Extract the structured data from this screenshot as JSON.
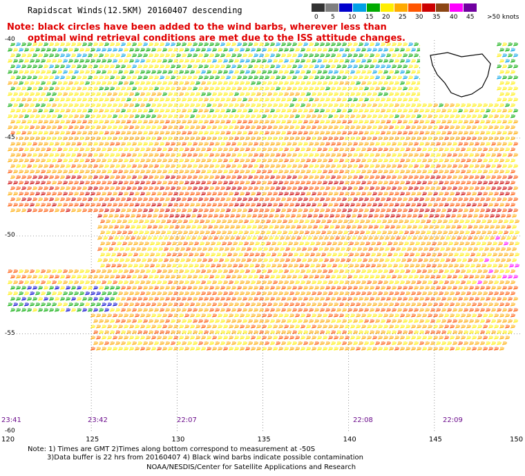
{
  "title": "Rapidscat Winds(12.5KM) 20160407 descending",
  "note_line1": "Note: black circles have been added to the wind barbs, wherever less than",
  "note_line2": "optimal wind retrieval conditions are met due to the ISS attitude changes.",
  "colorbar": {
    "labels": [
      "0",
      "5",
      "10",
      "15",
      "20",
      "25",
      "30",
      "35",
      "40",
      "45",
      ">50 knots"
    ],
    "colors": [
      "#333333",
      "#7f7f7f",
      "#0000cc",
      "#00a0e6",
      "#00aa00",
      "#ffee00",
      "#ffaa00",
      "#ff5500",
      "#cc0000",
      "#8b4513",
      "#ff00ff",
      "#7000a0"
    ]
  },
  "lat_labels": [
    "-40",
    "-45",
    "-50",
    "-55",
    "-60"
  ],
  "lon_labels": [
    "120",
    "125",
    "130",
    "135",
    "140",
    "145",
    "150"
  ],
  "time_labels": [
    "23:41",
    "23:42",
    "22:07",
    "22:08",
    "22:09"
  ],
  "footer_line1": "Note: 1) Times are GMT 2)Times along bottom correspond to measurement at -50S",
  "footer_line2": "3)Data buffer is 22 hrs from 20160407 4) Black wind barbs indicate possible contamination",
  "footer_line3": "NOAA/NESDIS/Center for Satellite Applications and Research"
}
